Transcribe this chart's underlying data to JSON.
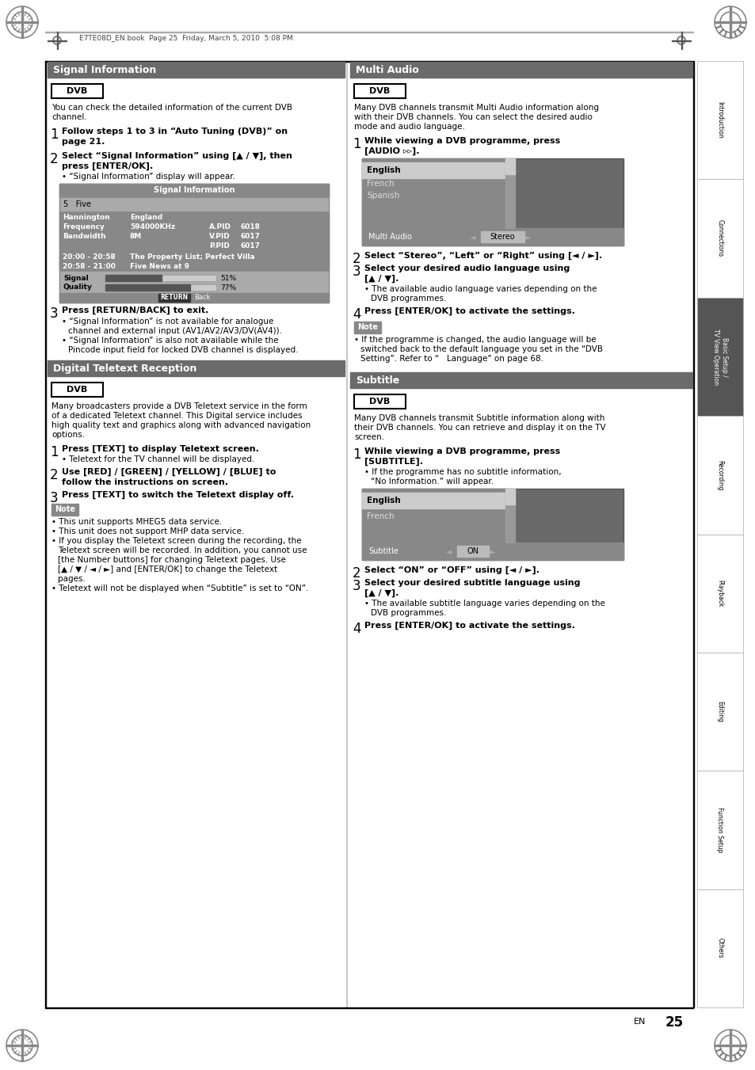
{
  "page_bg": "#ffffff",
  "header_text": "E7TE08D_EN.book  Page 25  Friday, March 5, 2010  5:08 PM",
  "section_bg": "#6b6b6b",
  "note_bg": "#888888",
  "page_number": "25",
  "sidebar_labels": [
    "Introduction",
    "Connections",
    "Basic Setup /\nTV View Operation",
    "Recording",
    "Playback",
    "Editing",
    "Function Setup",
    "Others"
  ],
  "sidebar_highlight": "Basic Setup /\nTV View Operation"
}
